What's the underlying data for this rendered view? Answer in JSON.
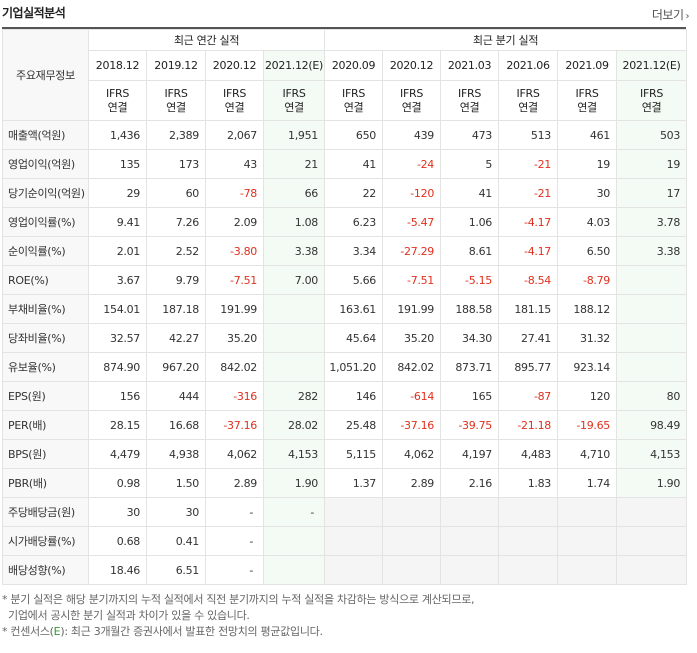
{
  "header": {
    "title": "기업실적분석",
    "more_label": "더보기",
    "more_arrow": "›"
  },
  "table": {
    "label_header": "주요재무정보",
    "groups": {
      "annual": "최근 연간 실적",
      "quarterly": "최근 분기 실적"
    },
    "periods": [
      "2018.12",
      "2019.12",
      "2020.12",
      "2021.12(E)",
      "2020.09",
      "2020.12",
      "2021.03",
      "2021.06",
      "2021.09",
      "2021.12(E)"
    ],
    "ifrs_line1": "IFRS",
    "ifrs_line2": "연결",
    "rows": [
      {
        "label": "매출액(억원)",
        "values": [
          "1,436",
          "2,389",
          "2,067",
          "1,951",
          "650",
          "439",
          "473",
          "513",
          "461",
          "503"
        ]
      },
      {
        "label": "영업이익(억원)",
        "values": [
          "135",
          "173",
          "43",
          "21",
          "41",
          "-24",
          "5",
          "-21",
          "19",
          "19"
        ]
      },
      {
        "label": "당기순이익(억원)",
        "values": [
          "29",
          "60",
          "-78",
          "66",
          "22",
          "-120",
          "41",
          "-21",
          "30",
          "17"
        ]
      },
      {
        "label": "영업이익률(%)",
        "values": [
          "9.41",
          "7.26",
          "2.09",
          "1.08",
          "6.23",
          "-5.47",
          "1.06",
          "-4.17",
          "4.03",
          "3.78"
        ]
      },
      {
        "label": "순이익률(%)",
        "values": [
          "2.01",
          "2.52",
          "-3.80",
          "3.38",
          "3.34",
          "-27.29",
          "8.61",
          "-4.17",
          "6.50",
          "3.38"
        ]
      },
      {
        "label": "ROE(%)",
        "values": [
          "3.67",
          "9.79",
          "-7.51",
          "7.00",
          "5.66",
          "-7.51",
          "-5.15",
          "-8.54",
          "-8.79",
          ""
        ]
      },
      {
        "label": "부채비율(%)",
        "values": [
          "154.01",
          "187.18",
          "191.99",
          "",
          "163.61",
          "191.99",
          "188.58",
          "181.15",
          "188.12",
          ""
        ]
      },
      {
        "label": "당좌비율(%)",
        "values": [
          "32.57",
          "42.27",
          "35.20",
          "",
          "45.64",
          "35.20",
          "34.30",
          "27.41",
          "31.32",
          ""
        ]
      },
      {
        "label": "유보율(%)",
        "values": [
          "874.90",
          "967.20",
          "842.02",
          "",
          "1,051.20",
          "842.02",
          "873.71",
          "895.77",
          "923.14",
          ""
        ]
      },
      {
        "label": "EPS(원)",
        "values": [
          "156",
          "444",
          "-316",
          "282",
          "146",
          "-614",
          "165",
          "-87",
          "120",
          "80"
        ]
      },
      {
        "label": "PER(배)",
        "values": [
          "28.15",
          "16.68",
          "-37.16",
          "28.02",
          "25.48",
          "-37.16",
          "-39.75",
          "-21.18",
          "-19.65",
          "98.49"
        ]
      },
      {
        "label": "BPS(원)",
        "values": [
          "4,479",
          "4,938",
          "4,062",
          "4,153",
          "5,115",
          "4,062",
          "4,197",
          "4,483",
          "4,710",
          "4,153"
        ]
      },
      {
        "label": "PBR(배)",
        "values": [
          "0.98",
          "1.50",
          "2.89",
          "1.90",
          "1.37",
          "2.89",
          "2.16",
          "1.83",
          "1.74",
          "1.90"
        ]
      },
      {
        "label": "주당배당금(원)",
        "values": [
          "30",
          "30",
          "-",
          "-"
        ]
      },
      {
        "label": "시가배당률(%)",
        "values": [
          "0.68",
          "0.41",
          "-",
          ""
        ]
      },
      {
        "label": "배당성향(%)",
        "values": [
          "18.46",
          "6.51",
          "-",
          ""
        ]
      }
    ]
  },
  "notes": {
    "line1": "* 분기 실적은 해당 분기까지의 누적 실적에서 직전 분기까지의 누적 실적을 차감하는 방식으로 계산되므로,",
    "line2": "기업에서 공시한 분기 실적과 차이가 있을 수 있습니다.",
    "line3_prefix": "* 컨센서스(",
    "line3_e": "E",
    "line3_suffix": "): 최근 3개월간 증권사에서 발표한 전망치의 평균값입니다."
  },
  "colors": {
    "negative": "#e0301e",
    "ifrs": "#d45b00",
    "estimate_bg": "#f4fbf4",
    "consensus_e": "#2e9c2e"
  }
}
